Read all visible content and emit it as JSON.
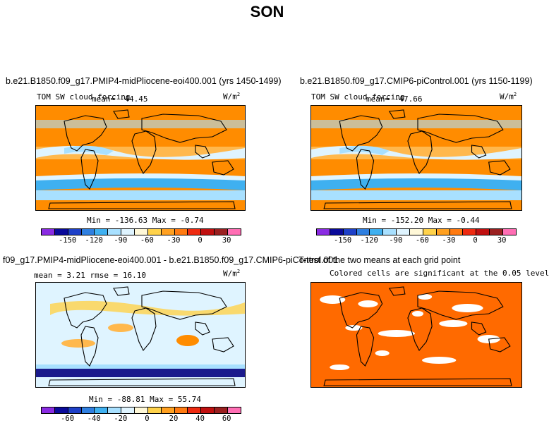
{
  "figure": {
    "title": "SON"
  },
  "panels": [
    {
      "id": "p1",
      "title": "b.e21.B1850.f09_g17.PMIP4-midPliocene-eoi400.001 (yrs 1450-1499)",
      "variable": "TOM SW cloud forcing",
      "mean_label": "mean= -44.45",
      "units": "W/m",
      "units_exp": "2",
      "stats": "Min = -136.63 Max =  -0.74"
    },
    {
      "id": "p2",
      "title": "b.e21.B1850.f09_g17.CMIP6-piControl.001 (yrs 1150-1199)",
      "variable": "TOM SW cloud forcing",
      "mean_label": "mean= -47.66",
      "units": "W/m",
      "units_exp": "2",
      "stats": "Min = -152.20 Max =  -0.44"
    },
    {
      "id": "p3",
      "title": "f09_g17.PMIP4-midPliocene-eoi400.001 - b.e21.B1850.f09_g17.CMIP6-piControl.001",
      "mean_label": "mean =   3.21     rmse =  16.10",
      "units": "W/m",
      "units_exp": "2",
      "stats": "Min = -88.81 Max =  55.74"
    },
    {
      "id": "p4",
      "title": "T-test of the two means at each grid point",
      "subtitle": "Colored cells are significant at the 0.05 level"
    }
  ],
  "colorbars": {
    "absolute": {
      "colors": [
        "#8a2be2",
        "#0a0a9a",
        "#1e40c8",
        "#2f7fe0",
        "#3fb0f0",
        "#a8e0ff",
        "#dff4ff",
        "#fff8d8",
        "#ffd24a",
        "#ffa020",
        "#ff7a10",
        "#ee2a10",
        "#c01010",
        "#9a2020",
        "#ff6eb4"
      ],
      "tick_labels": [
        "-150",
        "-120",
        "-90",
        "-60",
        "-30",
        "0",
        "30"
      ]
    },
    "difference": {
      "colors": [
        "#8a2be2",
        "#0a0a9a",
        "#1e40c8",
        "#2f7fe0",
        "#3fb0f0",
        "#a8e0ff",
        "#dff4ff",
        "#fff8d8",
        "#ffd24a",
        "#ffa020",
        "#ff7a10",
        "#ee2a10",
        "#c01010",
        "#9a2020",
        "#ff6eb4"
      ],
      "tick_labels": [
        "-60",
        "-40",
        "-20",
        "0",
        "20",
        "40",
        "60"
      ]
    }
  },
  "colors": {
    "orange": "#ff8c00",
    "light_orange": "#ffb84d",
    "pale": "#dff4ff",
    "light_blue": "#a8e0ff",
    "mid_blue": "#3fb0f0",
    "navy": "#1a1a8c",
    "yellow": "#ffd24a",
    "significant": "#ff6a00"
  }
}
